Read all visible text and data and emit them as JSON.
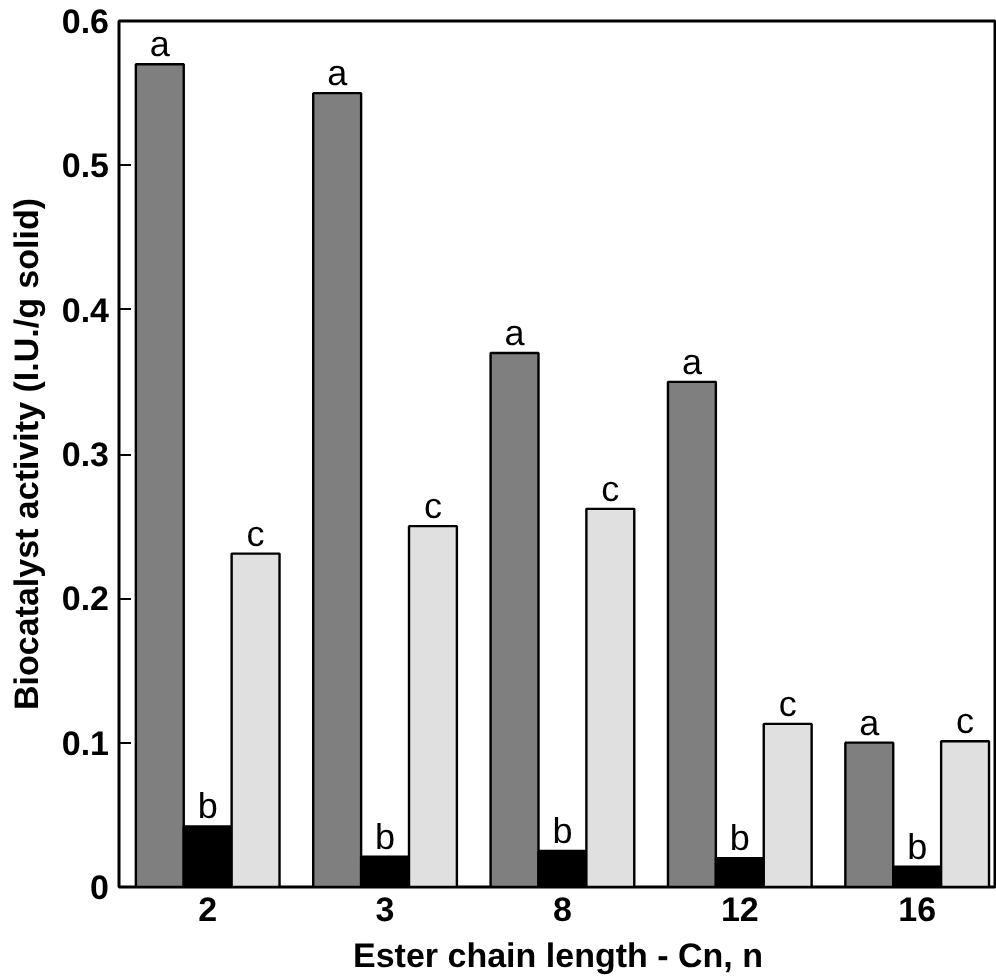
{
  "chart_data": {
    "type": "bar",
    "xlabel": "Ester chain length - Cn, n",
    "ylabel": "Biocatalyst activity (I.U./g solid)",
    "categories": [
      "2",
      "3",
      "8",
      "12",
      "16"
    ],
    "series": [
      {
        "color": "#7f7f7f",
        "values": [
          0.57,
          0.55,
          0.37,
          0.35,
          0.1
        ],
        "value_labels": [
          "a",
          "a",
          "a",
          "a",
          "a"
        ]
      },
      {
        "color": "#000000",
        "values": [
          0.042,
          0.021,
          0.025,
          0.02,
          0.014
        ],
        "value_labels": [
          "b",
          "b",
          "b",
          "b",
          "b"
        ]
      },
      {
        "color": "#e0e0e0",
        "values": [
          0.231,
          0.25,
          0.262,
          0.113,
          0.101
        ],
        "value_labels": [
          "c",
          "c",
          "c",
          "c",
          "c"
        ]
      }
    ],
    "ylim": [
      0,
      0.6
    ],
    "yticks": [
      0,
      0.1,
      0.2,
      0.3,
      0.4,
      0.5,
      0.6
    ],
    "grid": false
  }
}
